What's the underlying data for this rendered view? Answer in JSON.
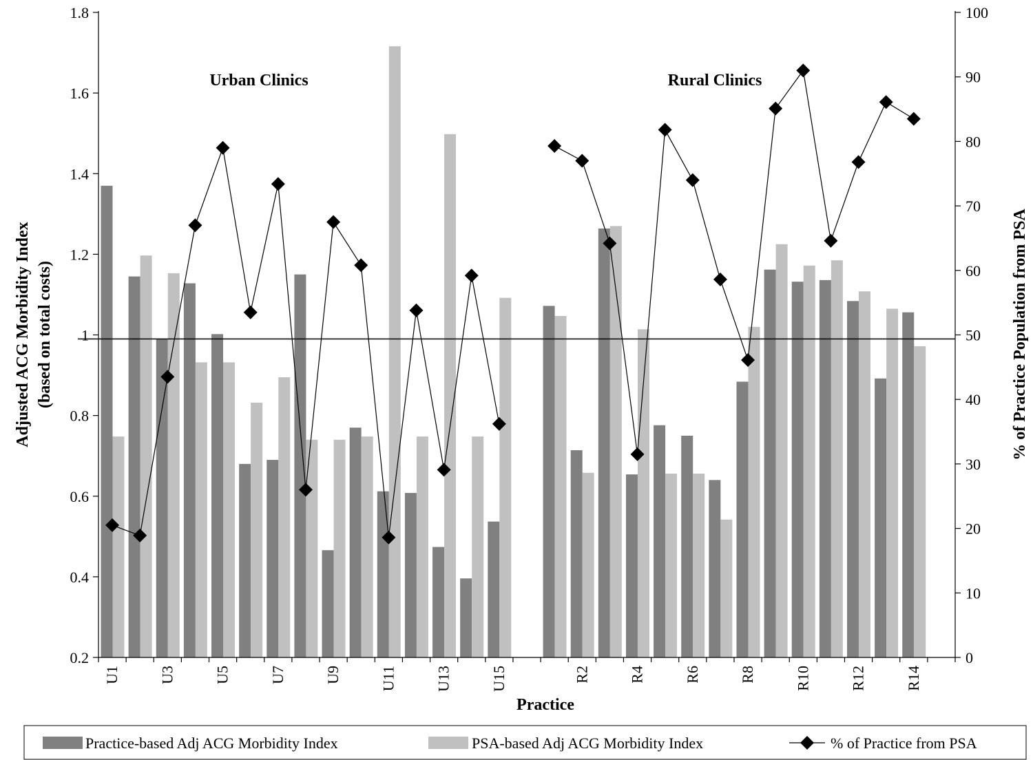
{
  "chart_data": {
    "type": "bar",
    "categories": [
      "U1",
      "U2",
      "U3",
      "U4",
      "U5",
      "U6",
      "U7",
      "U8",
      "U9",
      "U10",
      "U11",
      "U12",
      "U13",
      "U14",
      "U15",
      "",
      "R1",
      "R2",
      "R3",
      "R4",
      "R5",
      "R6",
      "R7",
      "R8",
      "R9",
      "R10",
      "R11",
      "R12",
      "R13",
      "R14",
      "R15"
    ],
    "shown_category_labels": [
      "U1",
      "",
      "U3",
      "",
      "U5",
      "",
      "U7",
      "",
      "U9",
      "",
      "U11",
      "",
      "U13",
      "",
      "U15",
      "",
      "",
      "R2",
      "",
      "R4",
      "",
      "R6",
      "",
      "R8",
      "",
      "R10",
      "",
      "R12",
      "",
      "R14",
      ""
    ],
    "series": [
      {
        "name": "Practice-based Adj ACG Morbidity Index",
        "axis": "left",
        "chart": "bar",
        "color": "#808080",
        "values": [
          1.37,
          1.145,
          0.99,
          1.128,
          1.002,
          0.68,
          0.69,
          1.15,
          0.466,
          0.77,
          0.612,
          0.608,
          0.474,
          0.396,
          0.537,
          null,
          1.072,
          0.714,
          1.264,
          0.654,
          0.776,
          0.75,
          0.64,
          0.884,
          1.162,
          1.132,
          1.136,
          1.084,
          0.892,
          1.056,
          null
        ]
      },
      {
        "name": "PSA-based Adj ACG Morbidity Index",
        "axis": "left",
        "chart": "bar",
        "color": "#c0c0c0",
        "values": [
          0.748,
          1.197,
          1.153,
          0.932,
          0.932,
          0.832,
          0.895,
          0.74,
          0.74,
          0.748,
          1.716,
          0.748,
          1.498,
          0.748,
          1.092,
          null,
          1.047,
          0.658,
          1.27,
          1.014,
          0.656,
          0.656,
          0.542,
          1.02,
          1.225,
          1.172,
          1.185,
          1.108,
          1.065,
          0.972,
          null
        ]
      },
      {
        "name": "% of Practice from PSA",
        "axis": "right",
        "chart": "line",
        "marker": "diamond",
        "color": "#000000",
        "values": [
          20.5,
          18.9,
          43.5,
          67.0,
          79.0,
          53.5,
          73.4,
          26.0,
          67.5,
          60.8,
          18.6,
          53.8,
          29.1,
          59.2,
          36.2,
          null,
          79.3,
          77.0,
          64.2,
          31.5,
          81.8,
          74.0,
          58.6,
          46.1,
          85.1,
          91.0,
          64.6,
          76.8,
          86.1,
          83.5,
          null
        ]
      }
    ],
    "xlabel": "Practice",
    "ylabel": "Adjusted ACG Morbidity Index",
    "ylabel_sub": "(based on total costs)",
    "y2label": "% of Practice Population from PSA",
    "ylim": [
      0.2,
      1.8
    ],
    "y_ticks": [
      "1.8",
      "1.6",
      "1.4",
      "1.2",
      "1",
      "0.8",
      "0.6",
      "0.4",
      "0.2"
    ],
    "y2lim": [
      0,
      100
    ],
    "y2_ticks": [
      "100",
      "90",
      "80",
      "70",
      "60",
      "50",
      "40",
      "30",
      "20",
      "10",
      "0"
    ],
    "reference_line_y": 0.99,
    "annotations": [
      "Urban Clinics",
      "Rural Clinics"
    ],
    "grid": false,
    "legend_position": "bottom"
  },
  "colors": {
    "practice_bar": "#808080",
    "psa_bar": "#c0c0c0",
    "line": "#000000"
  }
}
